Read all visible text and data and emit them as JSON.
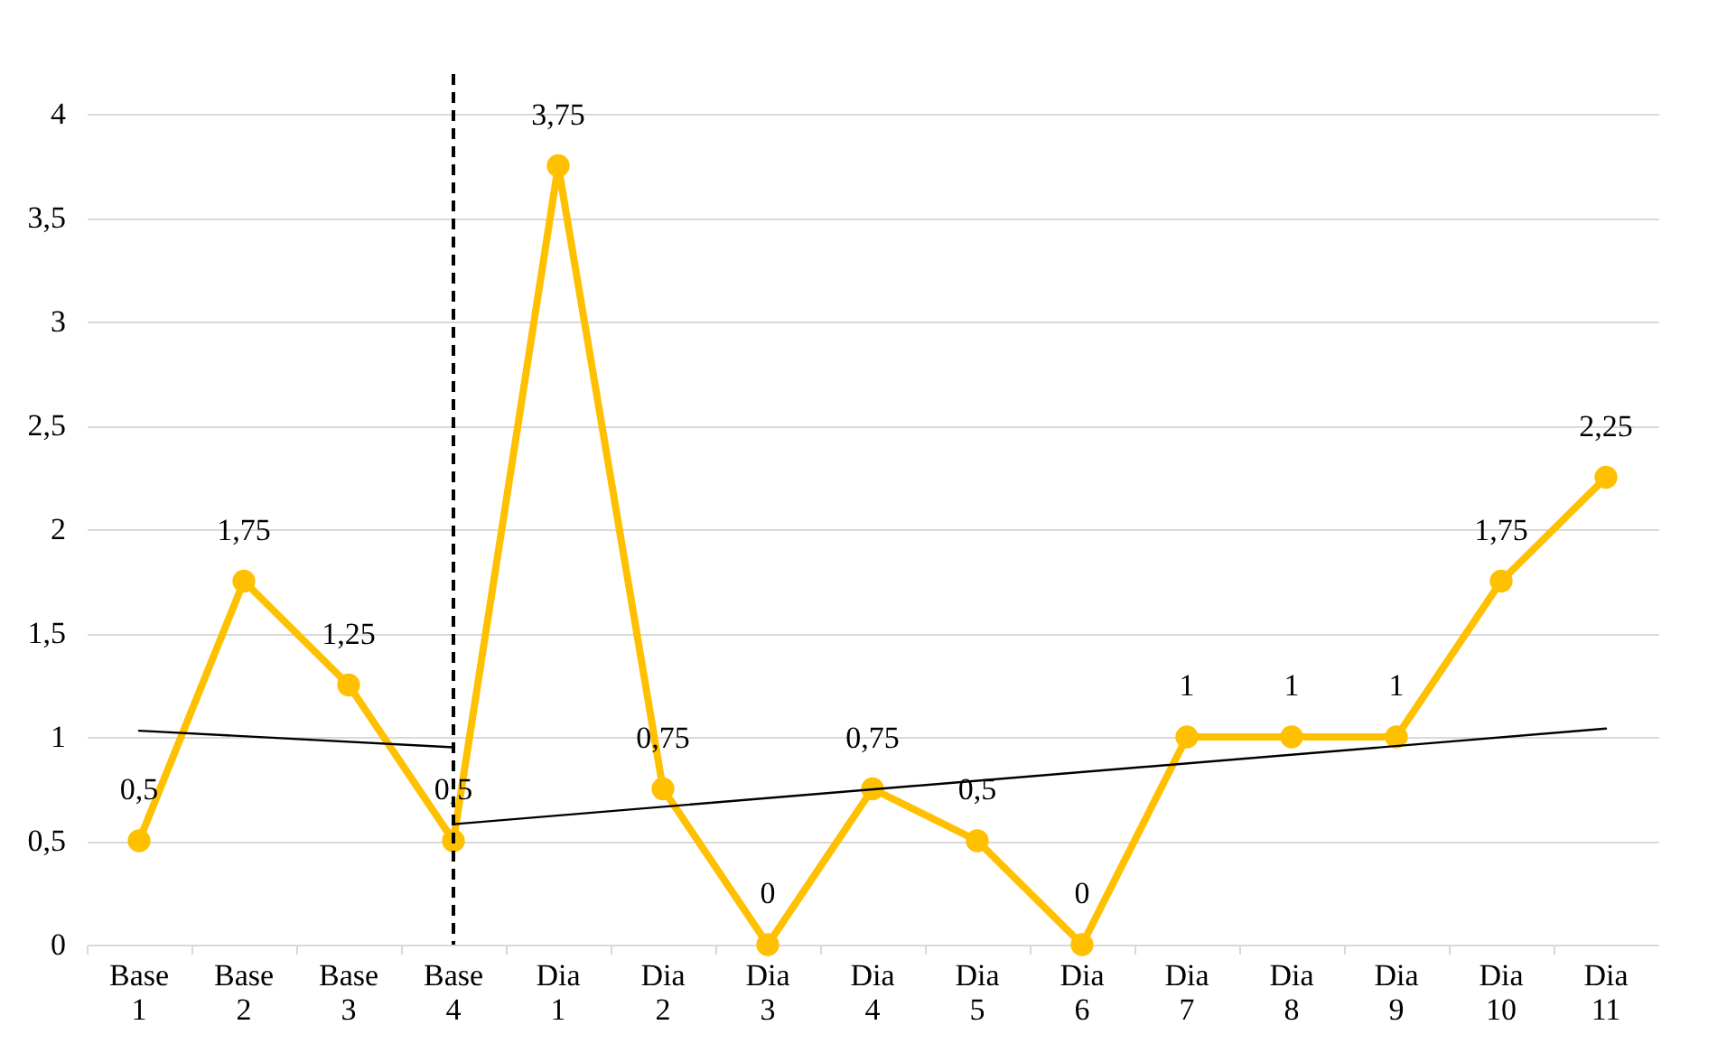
{
  "chart_data": {
    "type": "line",
    "categories": [
      "Base 1",
      "Base 2",
      "Base 3",
      "Base 4",
      "Dia 1",
      "Dia 2",
      "Dia 3",
      "Dia 4",
      "Dia 5",
      "Dia 6",
      "Dia 7",
      "Dia 8",
      "Dia 9",
      "Dia 10",
      "Dia 11"
    ],
    "series": [
      {
        "type": "line",
        "color": "#ffc000",
        "values": [
          0.5,
          1.75,
          1.25,
          0.5,
          3.75,
          0.75,
          0,
          0.75,
          0.5,
          0,
          1,
          1,
          1,
          1.75,
          2.25
        ],
        "value_labels": [
          "0,5",
          "1,75",
          "1,25",
          "0,5",
          "3,75",
          "0,75",
          "0",
          "0,75",
          "0,5",
          "0",
          "1",
          "1",
          "1",
          "1,75",
          "2,25"
        ]
      },
      {
        "type": "line",
        "color": "#000000",
        "marker": "none",
        "x": [
          "Base 1",
          "Base 4"
        ],
        "values": [
          1.03,
          0.95
        ]
      },
      {
        "type": "line",
        "color": "#000000",
        "marker": "none",
        "x": [
          "Base 4",
          "Dia 11"
        ],
        "values": [
          0.58,
          1.04
        ]
      }
    ],
    "ylim": [
      0,
      4
    ],
    "yticks": [
      0,
      {
        "value": 0.5,
        "label": "0,5"
      },
      1,
      {
        "value": 1.5,
        "label": "1,5"
      },
      2,
      {
        "value": 2.5,
        "label": "2,5"
      },
      3,
      {
        "value": 3.5,
        "label": "3,5"
      },
      4
    ],
    "grid": "y",
    "marker": "circle",
    "line_style": "solid",
    "ref_lines": [
      {
        "axis": "x",
        "value": "Base 4",
        "color": "#000000",
        "line_style": "dashed"
      }
    ]
  }
}
